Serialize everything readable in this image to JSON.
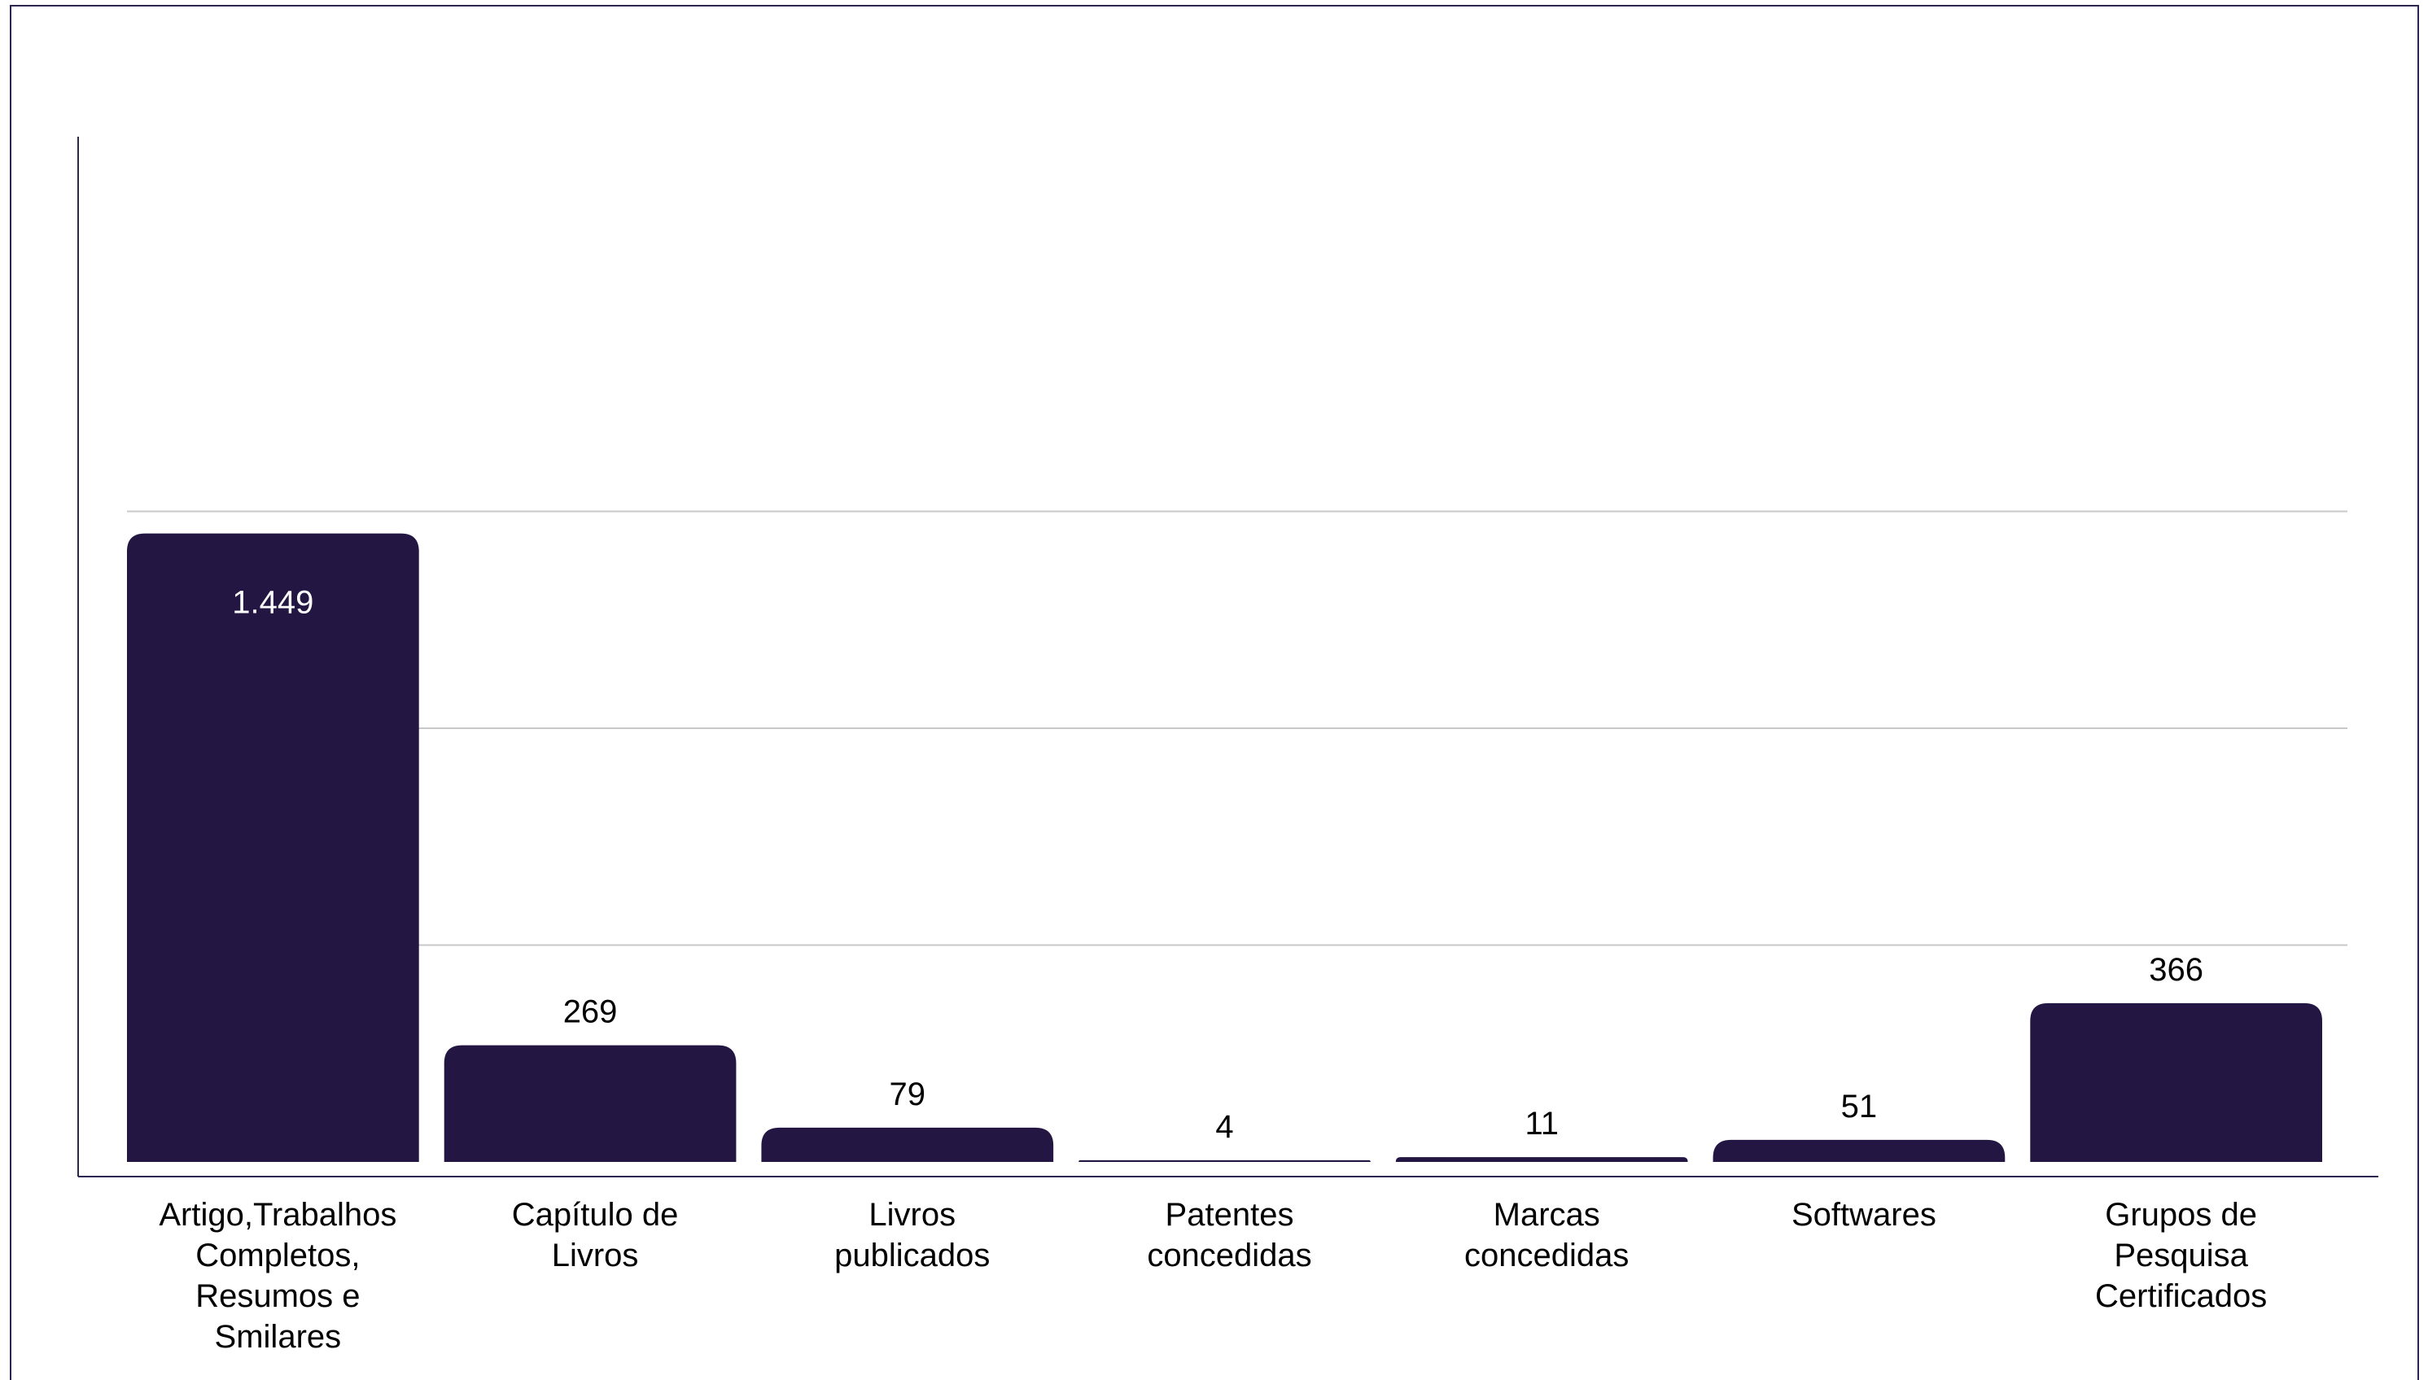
{
  "chart_data": {
    "type": "bar",
    "title": "",
    "xlabel": "",
    "ylabel": "",
    "categories": [
      "Artigo,Trabalhos Completos, Resumos e Smilares",
      "Capítulo de Livros",
      "Livros publicados",
      "Patentes concedidas",
      "Marcas concedidas",
      "Softwares",
      "Grupos de Pesquisa Certificados"
    ],
    "category_lines": [
      [
        "Artigo,Trabalhos",
        "Completos,",
        "Resumos e",
        "Smilares"
      ],
      [
        "Capítulo de",
        "Livros"
      ],
      [
        "Livros",
        "publicados"
      ],
      [
        "Patentes",
        "concedidas"
      ],
      [
        "Marcas",
        "concedidas"
      ],
      [
        "Softwares"
      ],
      [
        "Grupos de",
        "Pesquisa",
        "Certificados"
      ]
    ],
    "values": [
      1449,
      269,
      79,
      4,
      11,
      51,
      366
    ],
    "value_labels": [
      "1.449",
      "269",
      "79",
      "4",
      "11",
      "51",
      "366"
    ],
    "ylim": [
      0,
      2000
    ],
    "gridlines": [
      500,
      1000,
      1500
    ],
    "grid": true,
    "legend": "none",
    "colors": {
      "bar": "#231642",
      "grid": "#c8c8c8",
      "axis": "#2b2650",
      "label": "#000000",
      "label_inside": "#ffffff"
    }
  }
}
